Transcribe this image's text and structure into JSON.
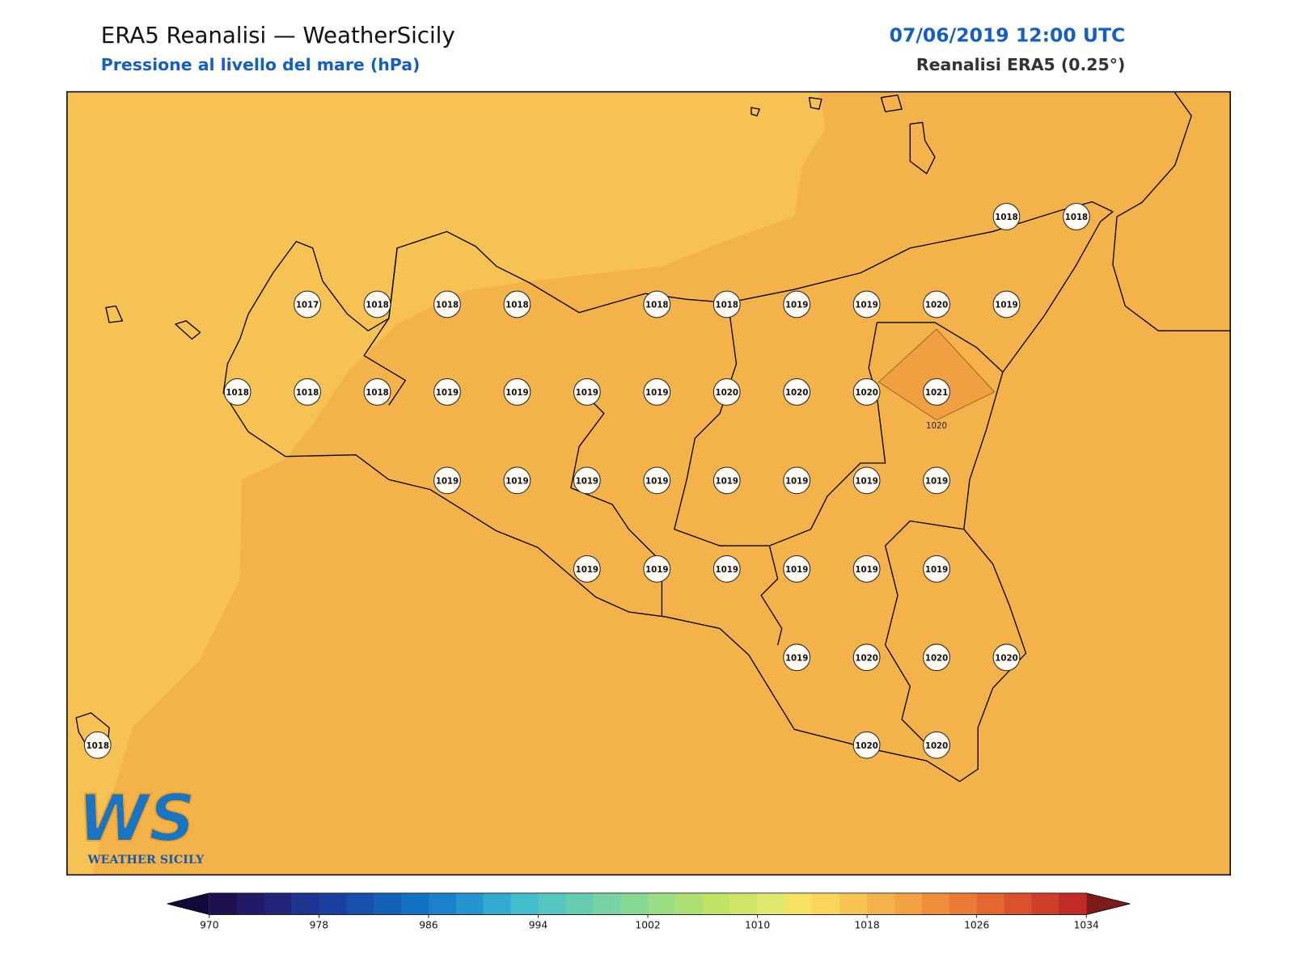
{
  "header": {
    "title": "ERA5 Reanalisi — WeatherSicily",
    "subtitle": "Pressione al livello del mare (hPa)",
    "datetime": "07/06/2019 12:00 UTC",
    "source": "Reanalisi ERA5 (0.25°)"
  },
  "map": {
    "contour_label": "1020",
    "stations": [
      [
        null,
        null,
        null,
        null,
        null,
        null,
        null,
        null,
        null,
        null,
        null,
        null,
        null,
        1018,
        1018
      ],
      [
        null,
        null,
        null,
        1017,
        1018,
        1018,
        1018,
        null,
        1018,
        1018,
        1019,
        1019,
        1020,
        1019,
        null
      ],
      [
        null,
        null,
        1018,
        1018,
        1018,
        1019,
        1019,
        1019,
        1019,
        1020,
        1020,
        1020,
        1021,
        null,
        null
      ],
      [
        null,
        null,
        null,
        null,
        null,
        1019,
        1019,
        1019,
        1019,
        1019,
        1019,
        1019,
        1019,
        null,
        null
      ],
      [
        null,
        null,
        null,
        null,
        null,
        null,
        null,
        1019,
        1019,
        1019,
        1019,
        1019,
        1019,
        null,
        null
      ],
      [
        null,
        null,
        null,
        null,
        null,
        null,
        null,
        null,
        null,
        null,
        1019,
        1020,
        1020,
        1020,
        null
      ],
      [
        1018,
        null,
        null,
        null,
        null,
        null,
        null,
        null,
        null,
        null,
        null,
        1020,
        1020,
        null,
        null
      ]
    ]
  },
  "logo": {
    "mark": "WS",
    "name": "WEATHER SICILY"
  },
  "colorbar": {
    "lim": [
      970,
      1034
    ],
    "ticks": [
      970,
      978,
      986,
      994,
      1002,
      1010,
      1018,
      1026,
      1034
    ],
    "colors": [
      "#1e0f4f",
      "#221a66",
      "#23247a",
      "#1f3390",
      "#1a409f",
      "#1650ac",
      "#1461b8",
      "#1371c4",
      "#1a82cc",
      "#2595d0",
      "#33abd0",
      "#43bccb",
      "#56c6c0",
      "#66ccb2",
      "#77d3a4",
      "#88d895",
      "#9bdd85",
      "#addf73",
      "#bfe365",
      "#d1e667",
      "#e0e86d",
      "#f7e163",
      "#fbd45c",
      "#f7c454",
      "#f6b24a",
      "#f3a244",
      "#ef8f3c",
      "#ea7b36",
      "#e36731",
      "#d9522c",
      "#ce3e2a",
      "#c02a27"
    ],
    "under_color": "#12093a",
    "over_color": "#7d1a1a"
  }
}
